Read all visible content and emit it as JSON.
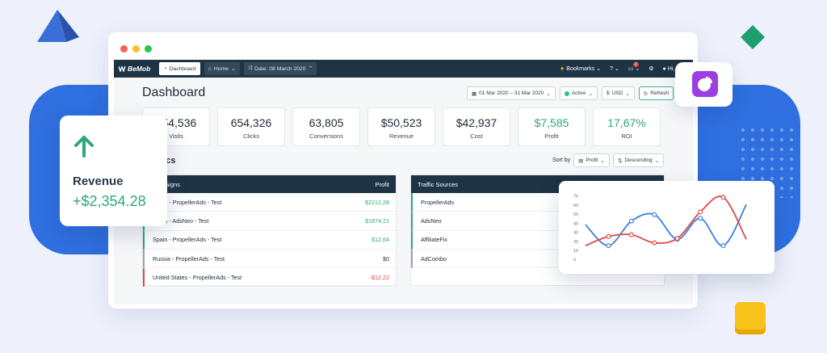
{
  "colors": {
    "brand_dark": "#1e3445",
    "accent_green": "#2ea77a",
    "negative_red": "#e04848",
    "blue_band": "#2f6fe0",
    "star": "#f7b500"
  },
  "topbar": {
    "logo": "BeMob",
    "tabs": [
      {
        "label": "Dashboard",
        "icon": "gauge-icon"
      },
      {
        "label": "Home",
        "icon": "home-icon"
      },
      {
        "label": "Date: 08 March 2020",
        "icon": "shuffle-icon"
      }
    ],
    "bookmarks_label": "Bookmarks",
    "user_label": "Hi, User",
    "notification_count": "2"
  },
  "header": {
    "title": "Dashboard",
    "date_range": "01 Mar 2020 – 31 Mar 2020",
    "status_filter": "Active",
    "currency": "USD",
    "refresh_label": "Refresh"
  },
  "stats": [
    {
      "value": "654,536",
      "label": "Visits"
    },
    {
      "value": "654,326",
      "label": "Clicks"
    },
    {
      "value": "63,805",
      "label": "Conversions"
    },
    {
      "value": "$50,523",
      "label": "Revenue"
    },
    {
      "value": "$42,937",
      "label": "Cost"
    },
    {
      "value": "$7,585",
      "label": "Profit",
      "green": true
    },
    {
      "value": "17,67%",
      "label": "ROI",
      "green": true
    }
  ],
  "metrics_title": "Metrics",
  "sort": {
    "label": "Sort by",
    "field": "Profit",
    "order": "Descending"
  },
  "campaigns": {
    "header": "Campaigns",
    "metric_header": "Profit",
    "rows": [
      {
        "name": "Spain - PropellerAds - Test",
        "value": "$2212,28",
        "tone": "pos"
      },
      {
        "name": "Spain - AdsNeo - Test",
        "value": "$1874,21",
        "tone": "pos"
      },
      {
        "name": "Spain - PropellerAds - Test",
        "value": "$12,64",
        "tone": "pos"
      },
      {
        "name": "Russia - PropellerAds - Test",
        "value": "$0",
        "tone": "zero"
      },
      {
        "name": "United States - PropellerAds - Test",
        "value": "-$12,22",
        "tone": "neg"
      }
    ]
  },
  "traffic_sources": {
    "header": "Traffic Sources",
    "rows": [
      {
        "name": "PropellerAds"
      },
      {
        "name": "AdsNeo"
      },
      {
        "name": "AffiliateFix"
      },
      {
        "name": "AdCombo"
      }
    ]
  },
  "revenue_card": {
    "label": "Revenue",
    "value": "+$2,354.28"
  },
  "chart_data": {
    "type": "line",
    "ylim": [
      0,
      70
    ],
    "y_ticks": [
      "70",
      "60",
      "50",
      "40",
      "30",
      "20",
      "10",
      "0"
    ],
    "x": [
      0,
      1,
      2,
      3,
      4,
      5,
      6,
      7
    ],
    "series": [
      {
        "color": "#3b7fe0",
        "values": [
          38,
          15,
          42,
          49,
          22,
          45,
          15,
          60
        ]
      },
      {
        "color": "#e04848",
        "values": [
          15,
          25,
          27,
          18,
          23,
          52,
          68,
          22
        ]
      }
    ]
  }
}
